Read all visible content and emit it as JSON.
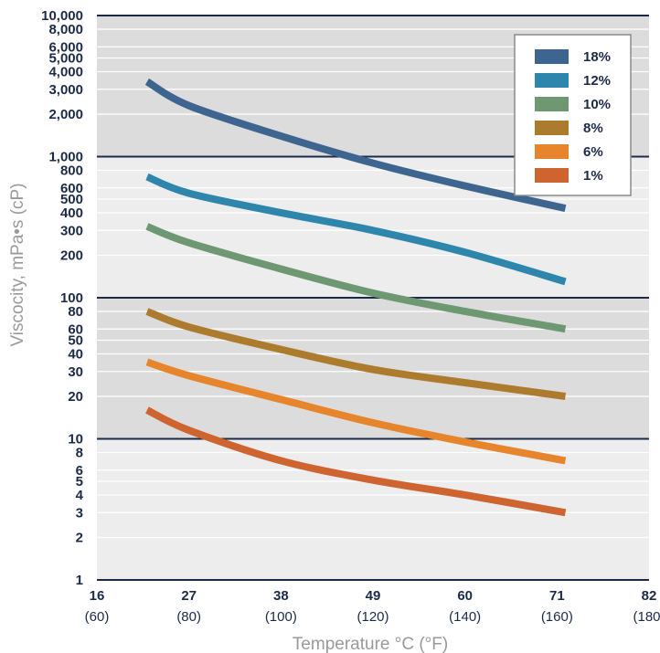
{
  "chart_data": {
    "type": "line",
    "xlabel": "Temperature °C (°F)",
    "ylabel": "Viscocity, mPa•s (cP)",
    "y_scale": "log",
    "ylim": [
      1,
      10000
    ],
    "xlim": [
      16,
      82
    ],
    "x_ticks": [
      {
        "c": "16",
        "f": "(60)"
      },
      {
        "c": "27",
        "f": "(80)"
      },
      {
        "c": "38",
        "f": "(100)"
      },
      {
        "c": "49",
        "f": "(120)"
      },
      {
        "c": "60",
        "f": "(140)"
      },
      {
        "c": "71",
        "f": "(160)"
      },
      {
        "c": "82",
        "f": "(180)"
      }
    ],
    "y_ticks": [
      "1",
      "2",
      "3",
      "4",
      "5",
      "6",
      "8",
      "10",
      "20",
      "30",
      "40",
      "50",
      "60",
      "80",
      "100",
      "200",
      "300",
      "400",
      "500",
      "600",
      "800",
      "1,000",
      "2,000",
      "3,000",
      "4,000",
      "5,000",
      "6,000",
      "8,000",
      "10,000"
    ],
    "grid": true,
    "legend_position": "top-right",
    "x": [
      22,
      27,
      38,
      49,
      60,
      72
    ],
    "series": [
      {
        "name": "18%",
        "color": "#3d6590",
        "values": [
          3400,
          2300,
          1400,
          900,
          620,
          430
        ]
      },
      {
        "name": "12%",
        "color": "#2e86ad",
        "values": [
          720,
          550,
          400,
          300,
          210,
          130
        ]
      },
      {
        "name": "10%",
        "color": "#6e9872",
        "values": [
          320,
          245,
          160,
          108,
          80,
          60
        ]
      },
      {
        "name": "8%",
        "color": "#ac7b2e",
        "values": [
          80,
          62,
          43,
          31,
          25,
          20
        ]
      },
      {
        "name": "6%",
        "color": "#e6852c",
        "values": [
          35,
          28,
          19,
          13,
          9.5,
          7
        ]
      },
      {
        "name": "1%",
        "color": "#ce6430",
        "values": [
          16,
          11.5,
          7,
          5.1,
          4,
          3
        ]
      }
    ]
  }
}
